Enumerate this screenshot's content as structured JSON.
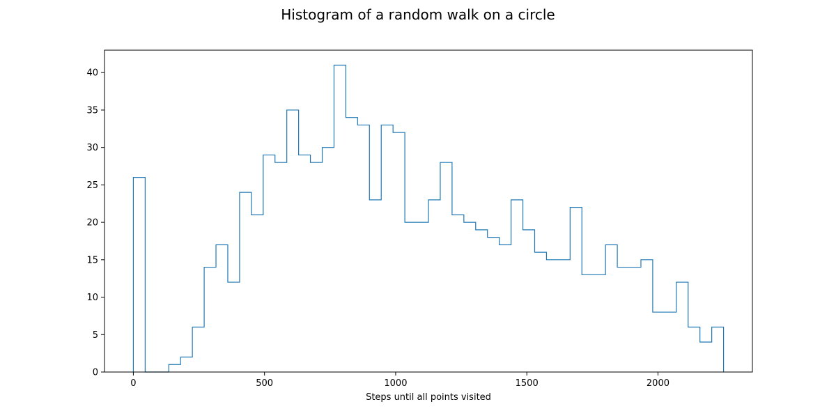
{
  "chart_data": {
    "type": "histogram",
    "title": "Histogram of a random walk on a circle",
    "xlabel": "Steps until all points visited",
    "ylabel": "",
    "xlim": [
      -110,
      2360
    ],
    "ylim": [
      0,
      43
    ],
    "x_ticks": [
      0,
      500,
      1000,
      1500,
      2000
    ],
    "y_ticks": [
      0,
      5,
      10,
      15,
      20,
      25,
      30,
      35,
      40
    ],
    "grid": false,
    "color": "#1f77b4",
    "bin_width": 45,
    "bin_edges": [
      0,
      45,
      90,
      135,
      180,
      225,
      270,
      315,
      360,
      405,
      450,
      495,
      540,
      585,
      630,
      675,
      720,
      765,
      810,
      855,
      900,
      945,
      990,
      1035,
      1080,
      1125,
      1170,
      1215,
      1260,
      1305,
      1350,
      1395,
      1440,
      1485,
      1530,
      1575,
      1620,
      1665,
      1710,
      1755,
      1800,
      1845,
      1890,
      1935,
      1980,
      2025,
      2070,
      2115,
      2160,
      2205,
      2250
    ],
    "counts": [
      26,
      0,
      0,
      1,
      2,
      6,
      14,
      17,
      12,
      24,
      21,
      29,
      28,
      35,
      29,
      28,
      30,
      41,
      34,
      33,
      23,
      33,
      32,
      20,
      20,
      23,
      28,
      21,
      20,
      19,
      18,
      17,
      23,
      19,
      16,
      15,
      15,
      22,
      13,
      13,
      17,
      14,
      14,
      15,
      8,
      8,
      12,
      6,
      4,
      6
    ]
  }
}
